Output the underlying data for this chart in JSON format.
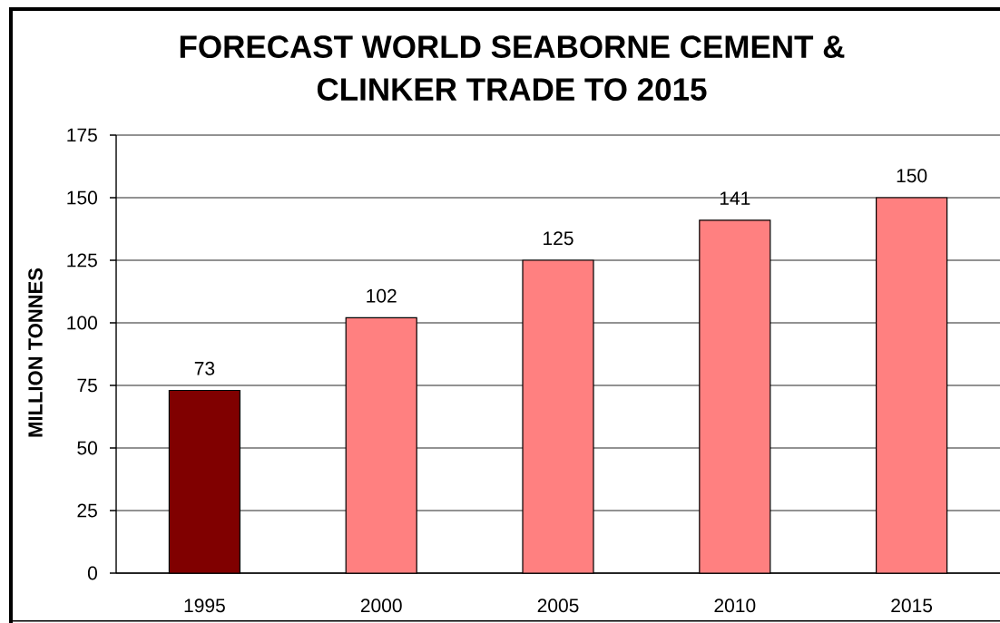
{
  "chart_data": {
    "type": "bar",
    "title": "FORECAST WORLD SEABORNE CEMENT & CLINKER TRADE TO 2015",
    "ylabel": "MILLION TONNES",
    "categories": [
      "1995",
      "2000",
      "2005",
      "2010",
      "2015"
    ],
    "values": [
      73,
      102,
      125,
      141,
      150
    ],
    "colors": [
      "#800000",
      "#ff8080",
      "#ff8080",
      "#ff8080",
      "#ff8080"
    ],
    "ylim": [
      0,
      175
    ],
    "yticks": [
      0,
      25,
      50,
      75,
      100,
      125,
      150,
      175
    ],
    "grid": "y",
    "data_labels": true
  }
}
